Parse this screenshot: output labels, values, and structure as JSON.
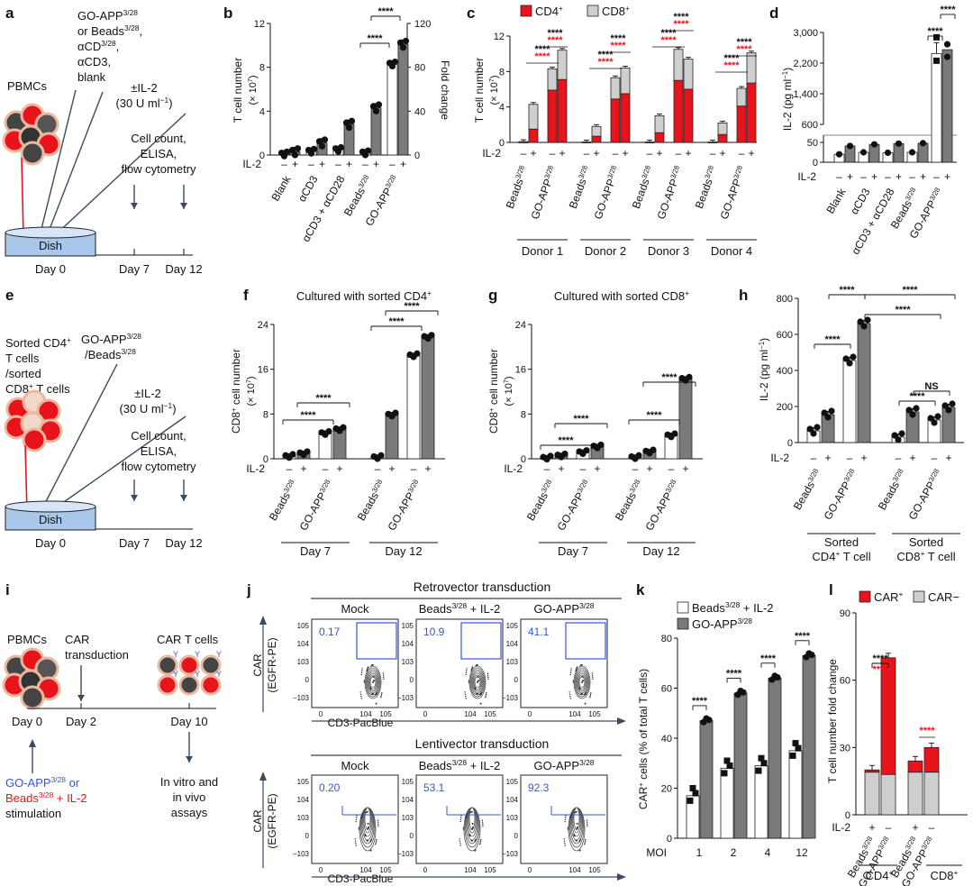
{
  "colors": {
    "dark": "#7a7a7a",
    "light": "#cfcfcf",
    "red": "#e8141b",
    "white": "#ffffff",
    "blue": "#3556d8",
    "cell": "#444444"
  },
  "panels": {
    "a": {
      "letter": "a",
      "pbmcs": "PBMCs",
      "stim": [
        "GO-APP3/28",
        "or Beads3/28,",
        "αCD3/28,",
        "αCD3,",
        "blank"
      ],
      "il2": [
        "±IL-2",
        "(30 U ml−1)"
      ],
      "readout": [
        "Cell count,",
        "ELISA,",
        "flow cytometry"
      ],
      "dish": "Dish",
      "days": [
        "Day 0",
        "Day 7",
        "Day 12"
      ]
    },
    "e": {
      "letter": "e",
      "cells": [
        "Sorted CD4+",
        "T cells",
        "/sorted",
        "CD8+ T cells"
      ],
      "stim": [
        "GO-APP3/28",
        "/Beads3/28"
      ],
      "il2": [
        "±IL-2",
        "(30 U ml−1)"
      ],
      "readout": [
        "Cell count,",
        "ELISA,",
        "flow cytometry"
      ],
      "dish": "Dish",
      "days": [
        "Day 0",
        "Day 7",
        "Day 12"
      ]
    },
    "i": {
      "letter": "i",
      "pbmcs": "PBMCs",
      "car": [
        "CAR",
        "transduction"
      ],
      "cart": "CAR T cells",
      "days": [
        "Day 0",
        "Day 2",
        "Day 10"
      ],
      "stim_blue": "GO-APP3/28 or",
      "stim_red": "Beads3/28 + IL-2",
      "stim_end": "stimulation",
      "assays": [
        "In vitro and",
        "in vivo",
        "assays"
      ]
    },
    "j": {
      "letter": "j",
      "retro": "Retrovector transduction",
      "lenti": "Lentivector transduction",
      "cols": [
        "Mock",
        "Beads3/28 + IL-2",
        "GO-APP3/28"
      ],
      "ylabel": [
        "CAR",
        "(EGFR-PE)"
      ],
      "xlabel": "CD3-PacBlue",
      "retro_pct": [
        "0.17",
        "10.9",
        "41.1"
      ],
      "lenti_pct": [
        "0.20",
        "53.1",
        "92.3"
      ]
    }
  },
  "chart_data": [
    {
      "id": "b",
      "type": "bar",
      "ylabel": [
        "T cell number",
        "(× 107)"
      ],
      "ylabel2": "Fold change",
      "ylim": [
        0,
        12
      ],
      "yticks": [
        "0",
        "4",
        "8",
        "12"
      ],
      "y2ticks": [
        "0",
        "40",
        "80",
        "120"
      ],
      "categories": [
        "Blank",
        "αCD3",
        "αCD3 + αCD28",
        "Beads3/28",
        "GO-APP3/28"
      ],
      "il2_label": "IL-2",
      "il2": [
        "–",
        "+"
      ],
      "minus_values": [
        0.1,
        0.35,
        0.5,
        0.2,
        8.3
      ],
      "plus_values": [
        0.3,
        1.1,
        2.8,
        4.3,
        10.1
      ],
      "sig": "****"
    },
    {
      "id": "c",
      "type": "stacked-bar",
      "legend": [
        "CD4+",
        "CD8+"
      ],
      "ylabel": [
        "T cell number",
        "(× 107)"
      ],
      "ylim": [
        0,
        12
      ],
      "yticks": [
        "0",
        "4",
        "8",
        "12"
      ],
      "donors": [
        "Donor 1",
        "Donor 2",
        "Donor 3",
        "Donor 4"
      ],
      "groups": [
        "Beads3/28",
        "GO-APP3/28"
      ],
      "il2_label": "IL-2",
      "il2": [
        "–",
        "+"
      ],
      "cd4": [
        [
          0,
          1.5,
          5.9,
          7.1
        ],
        [
          0,
          0.7,
          4.9,
          5.5
        ],
        [
          0,
          1.1,
          7.0,
          6.0
        ],
        [
          0,
          0.9,
          4.1,
          6.7
        ]
      ],
      "cd8": [
        [
          0.1,
          2.8,
          2.4,
          3.3
        ],
        [
          0.05,
          1.1,
          2.4,
          2.9
        ],
        [
          0.05,
          1.9,
          3.5,
          3.4
        ],
        [
          0.05,
          1.3,
          2.0,
          3.4
        ]
      ],
      "sig": "****"
    },
    {
      "id": "d",
      "type": "bar",
      "ylabel": "IL-2 (pg ml−1)",
      "yticks_top": [
        "600",
        "1,400",
        "2,200",
        "3,000"
      ],
      "yticks_bottom": [
        "0",
        "50"
      ],
      "categories": [
        "Blank",
        "αCD3",
        "αCD3 + αCD28",
        "Beads3/28",
        "GO-APP3/28"
      ],
      "il2_label": "IL-2",
      "il2": [
        "–",
        "+"
      ],
      "minus_values": [
        20,
        25,
        24,
        25,
        2450
      ],
      "plus_values": [
        41,
        45,
        47,
        48,
        2550
      ],
      "sig": "****"
    },
    {
      "id": "f",
      "type": "bar",
      "title": "Cultured with sorted CD4+",
      "ylabel": [
        "CD8+ cell number",
        "(× 107)"
      ],
      "ylim": [
        0,
        24
      ],
      "yticks": [
        "0",
        "8",
        "16",
        "24"
      ],
      "days": [
        "Day 7",
        "Day 12"
      ],
      "groups": [
        "Beads3/28",
        "GO-APP3/28"
      ],
      "il2_label": "IL-2",
      "il2": [
        "–",
        "+"
      ],
      "values": [
        [
          0.5,
          1.0,
          4.6,
          5.3
        ],
        [
          0.3,
          7.9,
          18.5,
          21.8
        ]
      ],
      "sig": "****"
    },
    {
      "id": "g",
      "type": "bar",
      "title": "Cultured with sorted CD8+",
      "ylabel": [
        "CD8+ cell number",
        "(× 107)"
      ],
      "ylim": [
        0,
        24
      ],
      "yticks": [
        "0",
        "8",
        "16",
        "24"
      ],
      "days": [
        "Day 7",
        "Day 12"
      ],
      "groups": [
        "Beads3/28",
        "GO-APP3/28"
      ],
      "il2_label": "IL-2",
      "il2": [
        "–",
        "+"
      ],
      "values": [
        [
          0.2,
          0.6,
          1.2,
          2.2
        ],
        [
          0.3,
          1.3,
          4.2,
          14.3
        ]
      ],
      "sig": "****"
    },
    {
      "id": "h",
      "type": "bar",
      "ylabel": "IL-2 (pg ml−1)",
      "ylim": [
        0,
        800
      ],
      "yticks": [
        "0",
        "200",
        "400",
        "600",
        "800"
      ],
      "sorted": [
        "Sorted",
        "CD4+ T cell",
        "Sorted",
        "CD8+ T cell"
      ],
      "groups": [
        "Beads3/28",
        "GO-APP3/28"
      ],
      "il2_label": "IL-2",
      "il2": [
        "–",
        "+"
      ],
      "values": [
        [
          65,
          155,
          455,
          660
        ],
        [
          30,
          170,
          125,
          195
        ]
      ],
      "sig": "****",
      "ns": "NS"
    },
    {
      "id": "k",
      "type": "bar",
      "legend": [
        "Beads3/28 + IL-2",
        "GO-APP3/28"
      ],
      "ylabel": "CAR+ cells (% of total T cells)",
      "ylim": [
        0,
        80
      ],
      "yticks": [
        "0",
        "20",
        "40",
        "60",
        "80"
      ],
      "xlabel": "MOI",
      "categories": [
        "1",
        "2",
        "4",
        "12"
      ],
      "beads": [
        17,
        28,
        29,
        35
      ],
      "goapp": [
        47,
        58,
        64,
        73
      ],
      "sig": "****"
    },
    {
      "id": "l",
      "type": "stacked-bar",
      "legend": [
        "CAR+",
        "CAR−"
      ],
      "ylabel": "T cell number fold change",
      "ylim": [
        0,
        90
      ],
      "yticks": [
        "0",
        "30",
        "60",
        "90"
      ],
      "il2_label": "IL-2",
      "il2": [
        "+",
        "–",
        "+",
        "–"
      ],
      "groups": [
        "Beads3/28",
        "GO-APP3/28",
        "Beads3/28",
        "GO-APP3/28"
      ],
      "subsets": [
        "CD4+",
        "CD8+"
      ],
      "car_pos": [
        1,
        52,
        5,
        11
      ],
      "car_neg": [
        19,
        18,
        19,
        19
      ],
      "sig": "****"
    }
  ]
}
